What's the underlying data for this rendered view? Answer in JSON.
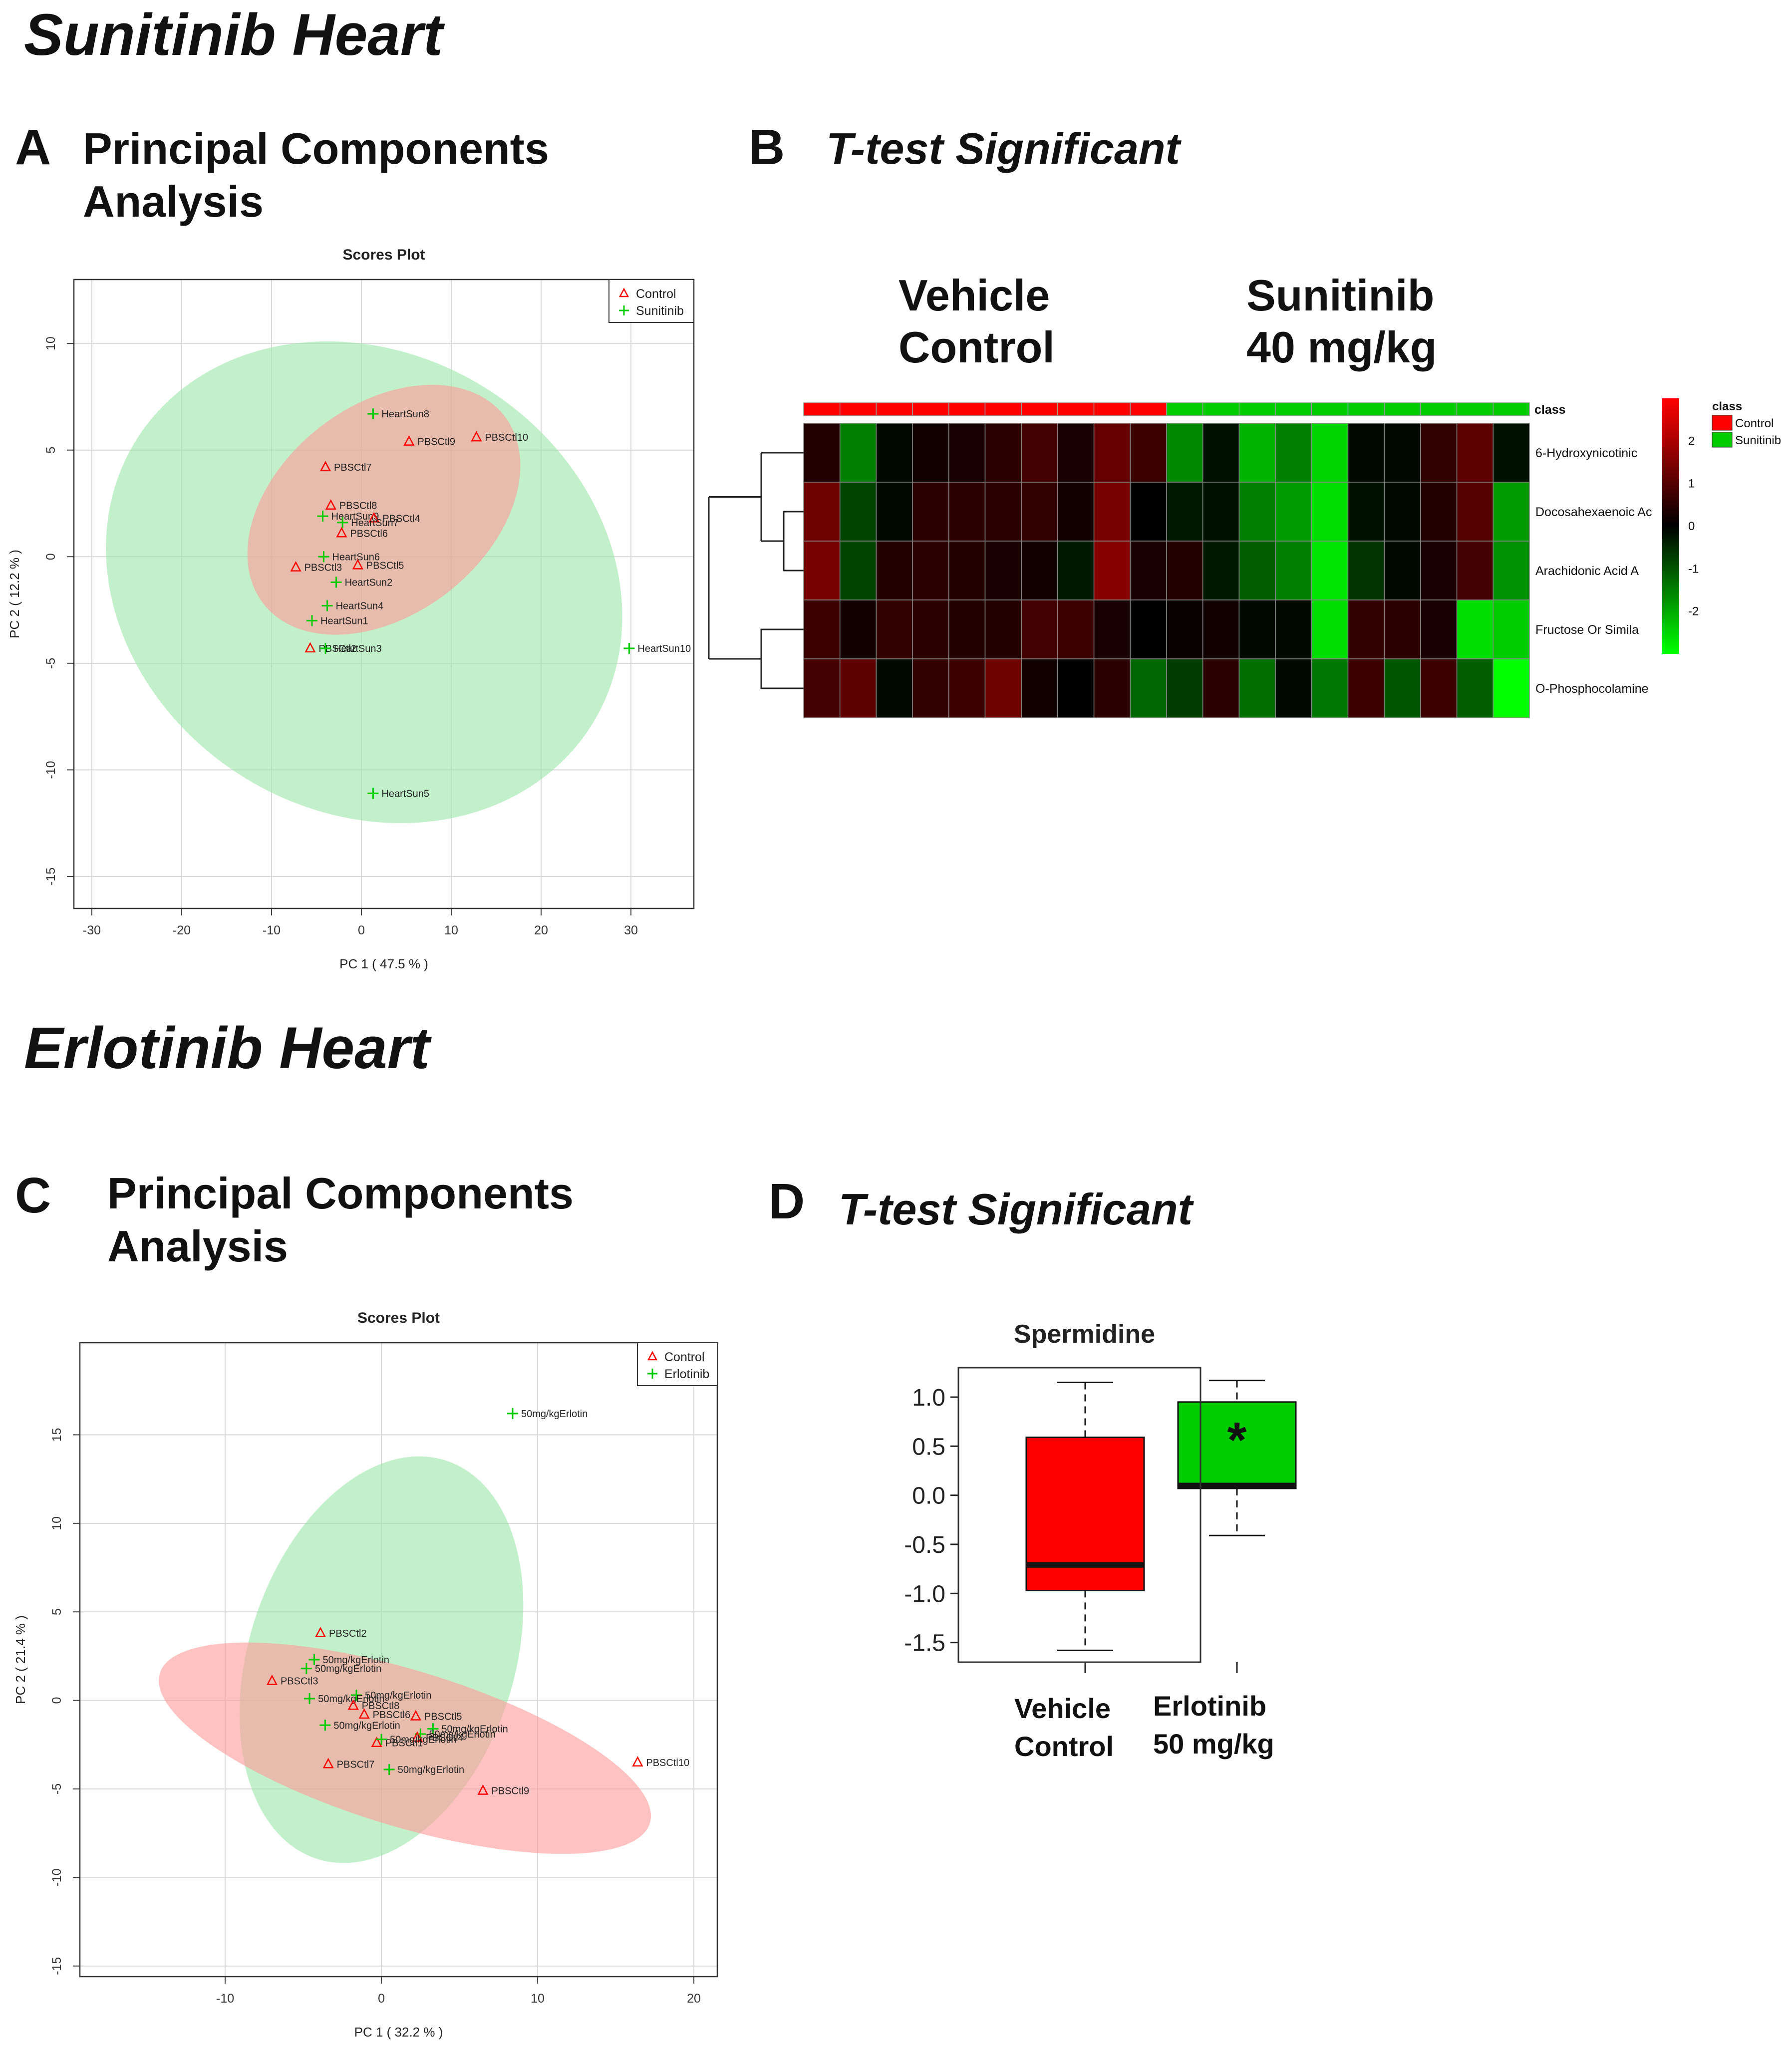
{
  "sections": {
    "sunitinib_title": "Sunitinib Heart",
    "erlotinib_title": "Erlotinib Heart"
  },
  "panels": {
    "A": {
      "letter": "A",
      "title_line1": "Principal Components",
      "title_line2": "Analysis"
    },
    "B": {
      "letter": "B",
      "title": "T-test Significant",
      "group1_line1": "Vehicle",
      "group1_line2": "Control",
      "group2_line1": "Sunitinib",
      "group2_line2": "40 mg/kg"
    },
    "C": {
      "letter": "C",
      "title_line1": "Principal Components",
      "title_line2": "Analysis"
    },
    "D": {
      "letter": "D",
      "title": "T-test Significant",
      "group1_line1": "Vehicle",
      "group1_line2": "Control",
      "group2_line1": "Erlotinib",
      "group2_line2": "50 mg/kg"
    }
  },
  "colors": {
    "control": "#ff0000",
    "treated": "#00cc00",
    "control_ellipse": "#ff9999",
    "treated_ellipse": "#99e6a6",
    "overlap": "#c8b887"
  },
  "chart_data": [
    {
      "id": "pca_sunitinib",
      "type": "scatter",
      "title": "Scores Plot",
      "xlabel": "PC 1 ( 47.5 % )",
      "ylabel": "PC 2 ( 12.2 % )",
      "xlim": [
        -32,
        37
      ],
      "ylim": [
        -16.5,
        13
      ],
      "xticks": [
        -30,
        -20,
        -10,
        0,
        10,
        20,
        30
      ],
      "yticks": [
        -15,
        -10,
        -5,
        0,
        5,
        10
      ],
      "legend": [
        {
          "name": "Control",
          "marker": "triangle"
        },
        {
          "name": "Sunitinib",
          "marker": "plus"
        }
      ],
      "ellipses": [
        {
          "group": "Sunitinib",
          "cx": 0.3,
          "cy": -1.2,
          "rx": 25.5,
          "ry": 12.6,
          "angle_deg": 58
        },
        {
          "group": "Control",
          "cx": 2.5,
          "cy": 2.2,
          "rx": 17,
          "ry": 4.9,
          "angle_deg": 38
        }
      ],
      "points": [
        {
          "label": "HeartSun8",
          "group": "Sunitinib",
          "x": 1.3,
          "y": 6.7
        },
        {
          "label": "PBSCtl9",
          "group": "Control",
          "x": 5.3,
          "y": 5.4
        },
        {
          "label": "PBSCtl10",
          "group": "Control",
          "x": 12.8,
          "y": 5.6
        },
        {
          "label": "PBSCtl7",
          "group": "Control",
          "x": -4,
          "y": 4.2
        },
        {
          "label": "PBSCtl8",
          "group": "Control",
          "x": -3.4,
          "y": 2.4
        },
        {
          "label": "HeartSun9",
          "group": "Sunitinib",
          "x": -4.3,
          "y": 1.9
        },
        {
          "label": "PBSCtl4",
          "group": "Control",
          "x": 1.4,
          "y": 1.8
        },
        {
          "label": "HeartSun7",
          "group": "Sunitinib",
          "x": -2.1,
          "y": 1.6
        },
        {
          "label": "PBSCtl6",
          "group": "Control",
          "x": -2.2,
          "y": 1.1
        },
        {
          "label": "HeartSun6",
          "group": "Sunitinib",
          "x": -4.2,
          "y": 0
        },
        {
          "label": "PBSCtl5",
          "group": "Control",
          "x": -0.4,
          "y": -0.4
        },
        {
          "label": "PBSCtl3",
          "group": "Control",
          "x": -7.3,
          "y": -0.5
        },
        {
          "label": "HeartSun2",
          "group": "Sunitinib",
          "x": -2.8,
          "y": -1.2
        },
        {
          "label": "HeartSun4",
          "group": "Sunitinib",
          "x": -3.8,
          "y": -2.3
        },
        {
          "label": "HeartSun1",
          "group": "Sunitinib",
          "x": -5.5,
          "y": -3
        },
        {
          "label": "PBSCtl2",
          "group": "Control",
          "x": -5.7,
          "y": -4.3
        },
        {
          "label": "HeartSun3",
          "group": "Sunitinib",
          "x": -4,
          "y": -4.3
        },
        {
          "label": "HeartSun10",
          "group": "Sunitinib",
          "x": 29.8,
          "y": -4.3
        },
        {
          "label": "HeartSun5",
          "group": "Sunitinib",
          "x": 1.3,
          "y": -11.1
        }
      ]
    },
    {
      "id": "heatmap_sunitinib",
      "type": "heatmap",
      "class_label": "class",
      "legend_title": "class",
      "legend": [
        "Control",
        "Sunitinib"
      ],
      "scale_ticks": [
        2,
        1,
        0,
        -1,
        -2
      ],
      "column_classes": [
        "Control",
        "Control",
        "Control",
        "Control",
        "Control",
        "Control",
        "Control",
        "Control",
        "Control",
        "Control",
        "Sunitinib",
        "Sunitinib",
        "Sunitinib",
        "Sunitinib",
        "Sunitinib",
        "Sunitinib",
        "Sunitinib",
        "Sunitinib",
        "Sunitinib",
        "Sunitinib"
      ],
      "rows": [
        "6-Hydroxynicotinic",
        "Docosahexaenoic Ac",
        "Arachidonic Acid A",
        "Fructose Or Simila",
        "O-Phosphocolamine"
      ],
      "values": [
        [
          0.4,
          -1.5,
          -0.1,
          0.2,
          0.3,
          0.5,
          0.8,
          0.3,
          1.2,
          0.7,
          -1.6,
          -0.2,
          -2.1,
          -1.5,
          -2.5,
          -0.1,
          -0.1,
          0.6,
          1.1,
          -0.2
        ],
        [
          1.3,
          -0.8,
          -0.1,
          0.5,
          0.5,
          0.5,
          0.6,
          0.2,
          1.4,
          0,
          -0.3,
          -0.2,
          -1.5,
          -1.8,
          -2.6,
          -0.2,
          -0.1,
          0.4,
          1.0,
          -1.8
        ],
        [
          1.4,
          -0.8,
          0.4,
          0.5,
          0.4,
          0.3,
          0.2,
          -0.3,
          1.6,
          0.3,
          0.4,
          -0.3,
          -1.1,
          -1.5,
          -2.7,
          -0.6,
          -0.1,
          0.3,
          0.8,
          -1.7
        ],
        [
          0.7,
          0.2,
          0.6,
          0.5,
          0.4,
          0.4,
          0.8,
          0.7,
          0.3,
          0,
          0.1,
          0.2,
          -0.1,
          -0.1,
          -2.6,
          0.6,
          0.5,
          0.3,
          -2.6,
          -2.4
        ],
        [
          0.8,
          1.1,
          -0.1,
          0.6,
          0.7,
          1.3,
          0.2,
          0,
          0.5,
          -1.2,
          -0.7,
          0.5,
          -1.3,
          -0.1,
          -1.4,
          0.7,
          -1.0,
          0.7,
          -1.1,
          -3.0
        ]
      ]
    },
    {
      "id": "pca_erlotinib",
      "type": "scatter",
      "title": "Scores Plot",
      "xlabel": "PC 1 ( 32.2 % )",
      "ylabel": "PC 2 ( 21.4 % )",
      "xlim": [
        -19.3,
        21.5
      ],
      "ylim": [
        -15.6,
        20.2
      ],
      "xticks": [
        -10,
        0,
        10,
        20
      ],
      "yticks": [
        -15,
        -10,
        -5,
        0,
        5,
        10,
        15
      ],
      "legend": [
        {
          "name": "Control",
          "marker": "triangle"
        },
        {
          "name": "Erlotinib",
          "marker": "plus"
        }
      ],
      "ellipses": [
        {
          "group": "Erlotinib",
          "cx": 0,
          "cy": 2.3,
          "rx": 13.4,
          "ry": 7.5,
          "angle_deg": 72
        },
        {
          "group": "Control",
          "cx": 1.5,
          "cy": -2.7,
          "rx": 16.4,
          "ry": 4.4,
          "angle_deg": -17
        }
      ],
      "points": [
        {
          "label": "50mg/kgErlotin",
          "group": "Erlotinib",
          "x": 8.4,
          "y": 16.2
        },
        {
          "label": "PBSCtl2",
          "group": "Control",
          "x": -3.9,
          "y": 3.8
        },
        {
          "label": "50mg/kgErlotin",
          "group": "Erlotinib",
          "x": -4.3,
          "y": 2.3
        },
        {
          "label": "50mg/kgErlotin",
          "group": "Erlotinib",
          "x": -4.8,
          "y": 1.8
        },
        {
          "label": "PBSCtl3",
          "group": "Control",
          "x": -7,
          "y": 1.1
        },
        {
          "label": "50mg/kgErlotin",
          "group": "Erlotinib",
          "x": -1.6,
          "y": 0.3
        },
        {
          "label": "50mg/kgErlotin",
          "group": "Erlotinib",
          "x": -4.6,
          "y": 0.1
        },
        {
          "label": "PBSCtl8",
          "group": "Control",
          "x": -1.8,
          "y": -0.3
        },
        {
          "label": "PBSCtl6",
          "group": "Control",
          "x": -1.1,
          "y": -0.8
        },
        {
          "label": "PBSCtl5",
          "group": "Control",
          "x": 2.2,
          "y": -0.9
        },
        {
          "label": "50mg/kgErlotin",
          "group": "Erlotinib",
          "x": -3.6,
          "y": -1.4
        },
        {
          "label": "50mg/kgErlotin",
          "group": "Erlotinib",
          "x": 3.3,
          "y": -1.6
        },
        {
          "label": "50mg/kgErlotin",
          "group": "Erlotinib",
          "x": 2.5,
          "y": -1.9
        },
        {
          "label": "PBSCtl4",
          "group": "Control",
          "x": 2.3,
          "y": -2.1
        },
        {
          "label": "PBSCtl1",
          "group": "Control",
          "x": -0.3,
          "y": -2.4
        },
        {
          "label": "50mg/kgErlotin",
          "group": "Erlotinib",
          "x": 0,
          "y": -2.2
        },
        {
          "label": "PBSCtl7",
          "group": "Control",
          "x": -3.4,
          "y": -3.6
        },
        {
          "label": "50mg/kgErlotin",
          "group": "Erlotinib",
          "x": 0.5,
          "y": -3.9
        },
        {
          "label": "PBSCtl9",
          "group": "Control",
          "x": 6.5,
          "y": -5.1
        },
        {
          "label": "PBSCtl10",
          "group": "Control",
          "x": 16.4,
          "y": -3.5
        }
      ]
    },
    {
      "id": "box_spermidine",
      "type": "box",
      "title": "Spermidine",
      "ylim": [
        -1.7,
        1.3
      ],
      "yticks": [
        -1.5,
        -1.0,
        -0.5,
        0.0,
        0.5,
        1.0
      ],
      "ytick_labels": [
        "-1.5",
        "-1.0",
        "-0.5",
        "0.0",
        "0.5",
        "1.0"
      ],
      "boxes": [
        {
          "group": "Control",
          "min": -1.58,
          "q1": -0.97,
          "median": -0.71,
          "q3": 0.59,
          "max": 1.15
        },
        {
          "group": "Erlotinib",
          "min": -0.41,
          "q1": 0.07,
          "median": 0.1,
          "q3": 0.95,
          "max": 1.17,
          "annotation": "*"
        }
      ]
    }
  ]
}
